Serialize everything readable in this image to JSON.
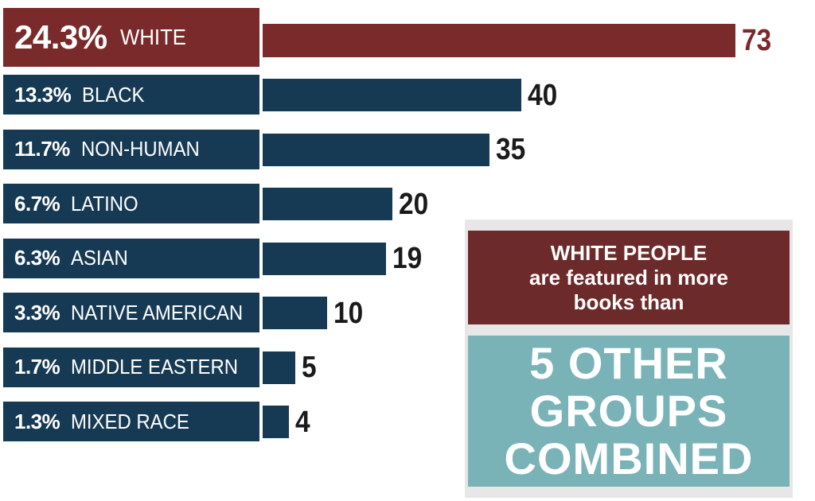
{
  "chart_data": {
    "type": "bar",
    "orientation": "horizontal",
    "categories": [
      "WHITE",
      "BLACK",
      "NON-HUMAN",
      "LATINO",
      "ASIAN",
      "NATIVE AMERICAN",
      "MIDDLE EASTERN",
      "MIXED RACE"
    ],
    "percents": [
      "24.3%",
      "13.3%",
      "11.7%",
      "6.7%",
      "6.3%",
      "3.3%",
      "1.7%",
      "1.3%"
    ],
    "values": [
      73,
      40,
      35,
      20,
      19,
      10,
      5,
      4
    ],
    "xlim": [
      0,
      73
    ],
    "grid": false,
    "legend": "none"
  },
  "colors": {
    "highlight": "#7a2a2a",
    "bar": "#173a54",
    "callout_top": "#6d2a2a",
    "callout_bottom": "#7ab3b7",
    "callout_bg": "#e7e7e7",
    "value_text": "#1a1a1a"
  },
  "callout": {
    "line1": "WHITE PEOPLE",
    "line2": "are featured in more",
    "line3": "books than",
    "big1": "5 OTHER",
    "big2": "GROUPS",
    "big3": "COMBINED"
  }
}
